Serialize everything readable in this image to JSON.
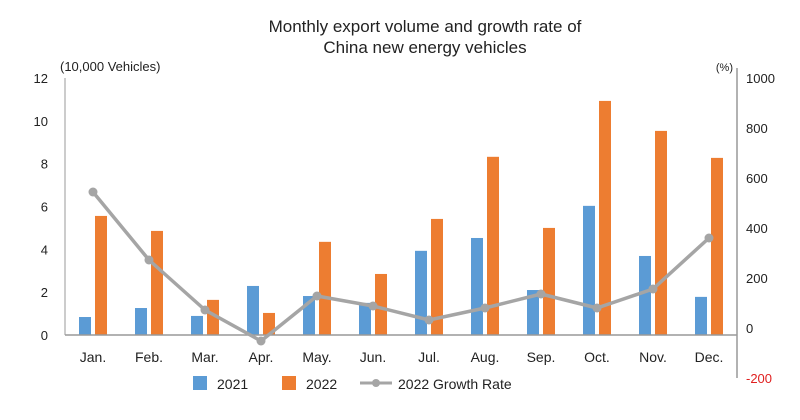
{
  "chart_data": {
    "type": "bar",
    "title_lines": [
      "Monthly export volume and growth rate of",
      "China new energy vehicles"
    ],
    "ylabel": "(10,000 Vehicles)",
    "y2label": "(%)",
    "ylim": [
      0,
      12
    ],
    "yticks": [
      "0",
      "2",
      "4",
      "6",
      "8",
      "10",
      "12"
    ],
    "y2lim": [
      -200,
      1000
    ],
    "y2ticks": [
      "-200",
      "0",
      "200",
      "400",
      "600",
      "800",
      "1000"
    ],
    "grid": false,
    "legend_position": "bottom",
    "categories": [
      "Jan.",
      "Feb.",
      "Mar.",
      "Apr.",
      "May.",
      "Jun.",
      "Jul.",
      "Aug.",
      "Sep.",
      "Oct.",
      "Nov.",
      "Dec."
    ],
    "series": [
      {
        "name": "2021",
        "type": "bar",
        "axis": "left",
        "color": "#5b9bd5",
        "values": [
          0.84,
          1.26,
          0.89,
          2.29,
          1.82,
          1.5,
          3.93,
          4.53,
          2.1,
          6.03,
          3.69,
          1.78
        ]
      },
      {
        "name": "2022",
        "type": "bar",
        "axis": "left",
        "color": "#ed7d31",
        "values": [
          5.56,
          4.86,
          1.64,
          1.03,
          4.35,
          2.85,
          5.42,
          8.32,
          5.0,
          10.93,
          9.53,
          8.27
        ]
      },
      {
        "name": "2022 Growth Rate",
        "type": "line",
        "axis": "right",
        "color": "#a5a5a5",
        "values": [
          544,
          272,
          72,
          -52,
          128,
          88,
          32,
          80,
          136,
          80,
          156,
          360
        ]
      }
    ],
    "negative_tick_color": "#e02020"
  }
}
